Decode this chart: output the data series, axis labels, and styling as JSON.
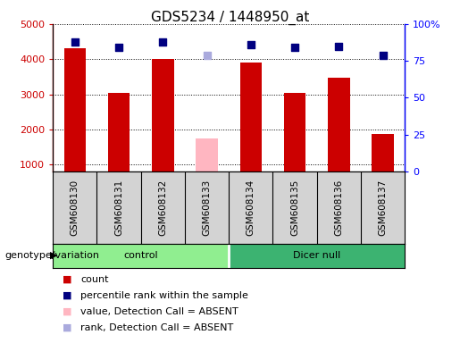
{
  "title": "GDS5234 / 1448950_at",
  "samples": [
    "GSM608130",
    "GSM608131",
    "GSM608132",
    "GSM608133",
    "GSM608134",
    "GSM608135",
    "GSM608136",
    "GSM608137"
  ],
  "counts": [
    4300,
    3050,
    4000,
    null,
    3900,
    3050,
    3470,
    1880
  ],
  "absent_value": 1750,
  "absent_index": 3,
  "percentile_ranks": [
    88,
    84,
    88,
    null,
    86,
    84,
    85,
    79
  ],
  "absent_rank": 79,
  "absent_rank_index": 3,
  "groups": [
    {
      "label": "control",
      "span": [
        0,
        3
      ],
      "color": "#90EE90"
    },
    {
      "label": "Dicer null",
      "span": [
        4,
        7
      ],
      "color": "#3CB371"
    }
  ],
  "group_label_prefix": "genotype/variation",
  "ylim_left": [
    800,
    5000
  ],
  "ylim_right": [
    0,
    100
  ],
  "yticks_left": [
    1000,
    2000,
    3000,
    4000,
    5000
  ],
  "yticks_right": [
    0,
    25,
    50,
    75,
    100
  ],
  "bar_color_normal": "#CC0000",
  "bar_color_absent": "#FFB6C1",
  "dot_color_normal": "#000080",
  "dot_color_absent": "#AAAADD",
  "background_plot": "#FFFFFF",
  "cell_bg": "#D3D3D3",
  "title_fontsize": 11,
  "tick_fontsize": 8,
  "label_fontsize": 8,
  "bar_width": 0.5,
  "dot_size": 40
}
